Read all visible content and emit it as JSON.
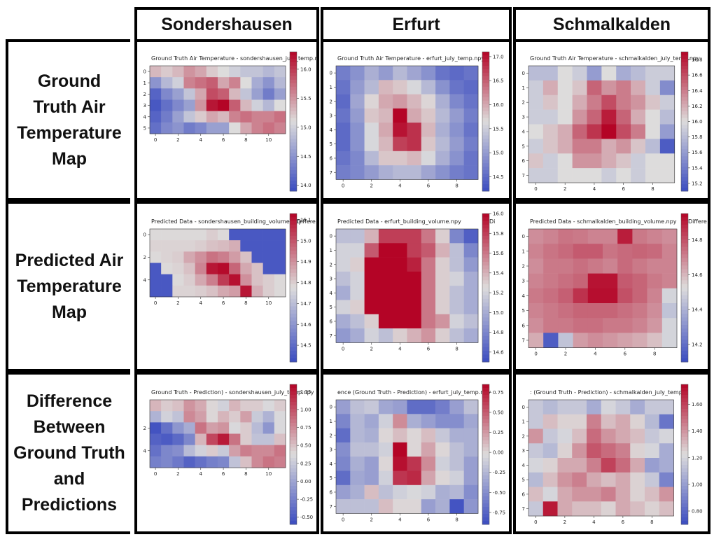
{
  "columns": [
    "Sondershausen",
    "Erfurt",
    "Schmalkalden"
  ],
  "rows": [
    [
      "Ground",
      "Truth Air",
      "Temperature",
      "Map"
    ],
    [
      "Predicted Air",
      "Temperature",
      "Map"
    ],
    [
      "Difference",
      "Between",
      "Ground Truth",
      "and",
      "Predictions"
    ]
  ],
  "colormap": {
    "low": "#3b4cc0",
    "mid": "#dddcdc",
    "high": "#b40426"
  },
  "chart_data": [
    {
      "type": "heatmap",
      "row": 0,
      "col": 0,
      "title": "Ground Truth Air Temperature - sondershausen_july_temp.npy",
      "xticks": [
        0,
        2,
        4,
        6,
        8,
        10
      ],
      "yticks": [
        0,
        1,
        2,
        3,
        4,
        5
      ],
      "colorbar_ticks": [
        14.0,
        14.5,
        15.0,
        15.5,
        16.0
      ],
      "vmin": 13.9,
      "vmax": 16.3,
      "values": [
        [
          15.3,
          15.2,
          15.3,
          15.5,
          15.4,
          15.2,
          15.1,
          15.0,
          14.9,
          14.9,
          14.8,
          14.9
        ],
        [
          14.5,
          14.8,
          15.0,
          15.6,
          15.7,
          15.8,
          15.4,
          15.6,
          15.1,
          14.7,
          14.5,
          14.8
        ],
        [
          14.1,
          14.4,
          14.6,
          14.9,
          15.4,
          15.9,
          15.8,
          15.3,
          14.9,
          14.6,
          14.3,
          14.6
        ],
        [
          14.0,
          14.2,
          14.4,
          14.6,
          15.5,
          16.2,
          16.3,
          15.8,
          15.3,
          15.0,
          14.8,
          15.1
        ],
        [
          14.1,
          14.3,
          14.6,
          14.9,
          15.2,
          15.4,
          15.3,
          15.6,
          15.7,
          15.6,
          15.6,
          15.7
        ],
        [
          14.2,
          14.4,
          14.5,
          14.3,
          14.4,
          14.6,
          14.6,
          15.1,
          15.4,
          15.6,
          15.7,
          15.6
        ]
      ]
    },
    {
      "type": "heatmap",
      "row": 0,
      "col": 1,
      "title": "Ground Truth Air Temperature - erfurt_july_temp.npy",
      "xticks": [
        0,
        2,
        4,
        6,
        8
      ],
      "yticks": [
        0,
        1,
        2,
        3,
        4,
        5,
        6,
        7
      ],
      "colorbar_ticks": [
        14.5,
        15.0,
        15.5,
        16.0,
        16.5,
        17.0
      ],
      "vmin": 14.2,
      "vmax": 17.1,
      "values": [
        [
          14.7,
          14.9,
          15.2,
          15.0,
          15.3,
          15.1,
          14.9,
          14.6,
          14.5,
          14.6
        ],
        [
          14.6,
          15.0,
          15.3,
          15.9,
          15.8,
          15.6,
          15.3,
          14.9,
          14.6,
          14.5
        ],
        [
          14.5,
          15.1,
          15.7,
          16.0,
          16.1,
          15.9,
          15.7,
          15.2,
          14.8,
          14.6
        ],
        [
          14.6,
          15.0,
          15.8,
          15.9,
          17.1,
          16.0,
          15.8,
          15.3,
          15.0,
          14.7
        ],
        [
          14.5,
          14.9,
          15.6,
          16.0,
          17.0,
          16.8,
          15.9,
          15.2,
          14.9,
          14.6
        ],
        [
          14.5,
          14.9,
          15.6,
          15.9,
          16.7,
          16.8,
          15.8,
          15.3,
          15.0,
          14.7
        ],
        [
          14.6,
          14.8,
          15.3,
          15.8,
          15.8,
          15.9,
          15.6,
          15.2,
          14.9,
          14.6
        ],
        [
          14.7,
          14.8,
          15.0,
          15.2,
          15.3,
          15.3,
          15.1,
          14.9,
          14.7,
          14.6
        ]
      ]
    },
    {
      "type": "heatmap",
      "row": 0,
      "col": 2,
      "title": "Ground Truth Air Temperature - schmalkalden_july_temp.npy",
      "xticks": [
        0,
        2,
        4,
        6,
        8
      ],
      "yticks": [
        0,
        1,
        2,
        3,
        4,
        5,
        6,
        7
      ],
      "colorbar_ticks": [
        15.2,
        15.4,
        15.6,
        15.8,
        16.0,
        16.2,
        16.4,
        16.6,
        16.8
      ],
      "vmin": 15.1,
      "vmax": 16.9,
      "values": [
        [
          15.8,
          15.8,
          16.0,
          15.9,
          15.6,
          16.0,
          15.7,
          15.8,
          15.9,
          15.9
        ],
        [
          15.9,
          16.2,
          16.0,
          16.1,
          16.5,
          16.3,
          16.4,
          16.2,
          15.9,
          15.5
        ],
        [
          15.9,
          16.1,
          16.0,
          16.2,
          16.4,
          16.6,
          16.4,
          16.3,
          16.1,
          15.9
        ],
        [
          15.9,
          15.9,
          16.0,
          16.3,
          16.5,
          16.8,
          16.5,
          16.2,
          16.0,
          15.8
        ],
        [
          16.0,
          16.1,
          16.2,
          16.5,
          16.7,
          16.9,
          16.6,
          16.4,
          16.0,
          15.6
        ],
        [
          15.9,
          16.1,
          16.2,
          16.4,
          16.4,
          16.2,
          16.3,
          16.1,
          15.8,
          15.2
        ],
        [
          16.1,
          15.9,
          16.0,
          16.3,
          16.3,
          16.2,
          16.1,
          15.9,
          16.0,
          16.0
        ],
        [
          15.9,
          15.9,
          16.0,
          16.0,
          16.0,
          15.9,
          16.0,
          15.9,
          16.0,
          16.0
        ]
      ]
    },
    {
      "type": "heatmap",
      "row": 1,
      "col": 0,
      "title": "Predicted Data - sondershausen_building_volume.npy",
      "title_right": "Differe",
      "xticks": [
        0,
        2,
        4,
        6,
        8,
        10
      ],
      "yticks": [
        0,
        2,
        4
      ],
      "colorbar_ticks": [
        14.5,
        14.6,
        14.7,
        14.8,
        14.9,
        15.0,
        15.1
      ],
      "vmin": 14.42,
      "vmax": 15.13,
      "values": [
        [
          14.78,
          14.78,
          14.78,
          14.78,
          14.78,
          14.8,
          14.78,
          14.45,
          14.45,
          14.45,
          14.45,
          14.45
        ],
        [
          14.79,
          14.79,
          14.79,
          14.79,
          14.8,
          14.82,
          14.83,
          14.85,
          14.45,
          14.45,
          14.45,
          14.45
        ],
        [
          14.78,
          14.79,
          14.8,
          14.86,
          14.9,
          14.95,
          14.93,
          14.88,
          14.82,
          14.45,
          14.45,
          14.45
        ],
        [
          14.45,
          14.78,
          14.79,
          14.82,
          14.92,
          15.1,
          15.12,
          14.97,
          14.86,
          14.82,
          14.45,
          14.45
        ],
        [
          14.45,
          14.45,
          14.78,
          14.8,
          14.86,
          14.93,
          15.04,
          15.11,
          14.9,
          14.82,
          14.8,
          14.78
        ],
        [
          14.45,
          14.45,
          14.79,
          14.79,
          14.8,
          14.82,
          14.86,
          14.88,
          15.1,
          14.85,
          14.8,
          14.78
        ]
      ]
    },
    {
      "type": "heatmap",
      "row": 1,
      "col": 1,
      "title": "Predicted Data - erfurt_building_volume.npy",
      "title_right": "Di",
      "xticks": [
        0,
        2,
        4,
        6,
        8
      ],
      "yticks": [
        0,
        1,
        2,
        3,
        4,
        5,
        6,
        7
      ],
      "colorbar_ticks": [
        14.6,
        14.8,
        15.0,
        15.2,
        15.4,
        15.6,
        15.8,
        16.0
      ],
      "vmin": 14.5,
      "vmax": 16.0,
      "values": [
        [
          15.1,
          15.1,
          15.4,
          15.8,
          15.8,
          15.8,
          15.6,
          15.3,
          14.8,
          14.6
        ],
        [
          15.2,
          15.2,
          15.7,
          16.0,
          16.0,
          15.8,
          15.7,
          15.4,
          15.1,
          14.8
        ],
        [
          15.2,
          15.3,
          16.0,
          16.0,
          16.0,
          15.9,
          15.6,
          15.3,
          15.1,
          14.9
        ],
        [
          15.1,
          15.2,
          16.0,
          16.0,
          16.0,
          16.0,
          15.6,
          15.3,
          15.2,
          15.0
        ],
        [
          15.0,
          15.2,
          16.0,
          16.0,
          16.0,
          16.0,
          15.6,
          15.3,
          15.1,
          15.0
        ],
        [
          15.2,
          15.3,
          16.0,
          16.0,
          16.0,
          16.0,
          15.6,
          15.3,
          15.1,
          15.0
        ],
        [
          15.0,
          15.1,
          15.3,
          16.0,
          16.0,
          16.0,
          15.6,
          15.5,
          15.2,
          15.1
        ],
        [
          14.9,
          15.0,
          15.2,
          15.1,
          15.3,
          15.4,
          15.5,
          15.3,
          15.1,
          15.0
        ]
      ]
    },
    {
      "type": "heatmap",
      "row": 1,
      "col": 2,
      "title": "Predicted Data - schmalkalden_building_volume.npy",
      "title_right": "Differe",
      "xticks": [
        0,
        2,
        4,
        6,
        8
      ],
      "yticks": [
        0,
        1,
        2,
        3,
        4,
        5,
        6,
        7
      ],
      "colorbar_ticks": [
        14.2,
        14.4,
        14.6,
        14.8
      ],
      "vmin": 14.1,
      "vmax": 14.95,
      "values": [
        [
          14.68,
          14.7,
          14.73,
          14.72,
          14.7,
          14.7,
          14.9,
          14.72,
          14.7,
          14.68
        ],
        [
          14.7,
          14.73,
          14.75,
          14.78,
          14.78,
          14.73,
          14.75,
          14.76,
          14.75,
          14.7
        ],
        [
          14.68,
          14.72,
          14.72,
          14.74,
          14.72,
          14.7,
          14.75,
          14.72,
          14.7,
          14.7
        ],
        [
          14.7,
          14.72,
          14.74,
          14.76,
          14.92,
          14.92,
          14.78,
          14.76,
          14.72,
          14.7
        ],
        [
          14.72,
          14.74,
          14.77,
          14.86,
          14.93,
          14.93,
          14.8,
          14.76,
          14.7,
          14.5
        ],
        [
          14.7,
          14.72,
          14.74,
          14.76,
          14.76,
          14.76,
          14.74,
          14.72,
          14.68,
          14.45
        ],
        [
          14.68,
          14.72,
          14.72,
          14.74,
          14.74,
          14.72,
          14.72,
          14.7,
          14.66,
          14.5
        ],
        [
          14.62,
          14.15,
          14.45,
          14.65,
          14.68,
          14.66,
          14.64,
          14.62,
          14.58,
          14.5
        ]
      ]
    },
    {
      "type": "heatmap",
      "row": 2,
      "col": 0,
      "title": "Ground Truth - Prediction) - sondershausen_july_temp.npy",
      "xticks": [
        0,
        2,
        4,
        6,
        8,
        10
      ],
      "yticks": [
        2,
        4
      ],
      "colorbar_ticks": [
        -0.5,
        -0.25,
        0.0,
        0.25,
        0.5,
        0.75,
        1.0,
        1.25
      ],
      "vmin": -0.6,
      "vmax": 1.35,
      "values": [
        [
          0.55,
          0.45,
          0.5,
          0.7,
          0.6,
          0.4,
          0.3,
          0.55,
          0.45,
          0.45,
          0.35,
          0.45
        ],
        [
          0.1,
          0.3,
          0.2,
          0.75,
          0.65,
          0.4,
          0.55,
          0.45,
          0.65,
          0.25,
          0.1,
          0.35
        ],
        [
          -0.55,
          -0.35,
          -0.1,
          0.05,
          0.85,
          0.65,
          0.7,
          0.35,
          0.45,
          0.15,
          -0.1,
          0.35
        ],
        [
          -0.45,
          -0.5,
          -0.4,
          -0.2,
          0.55,
          1.05,
          1.25,
          0.85,
          0.45,
          0.2,
          0.2,
          0.5
        ],
        [
          -0.35,
          -0.2,
          -0.15,
          0.15,
          0.3,
          0.45,
          0.25,
          0.65,
          0.8,
          0.75,
          0.75,
          0.85
        ],
        [
          -0.25,
          -0.2,
          -0.3,
          -0.45,
          -0.35,
          -0.25,
          -0.2,
          0.2,
          0.5,
          0.75,
          0.85,
          0.8
        ]
      ]
    },
    {
      "type": "heatmap",
      "row": 2,
      "col": 1,
      "title": "ence (Ground Truth - Prediction) - erfurt_july_temp.npy",
      "xticks": [
        0,
        2,
        4,
        6,
        8
      ],
      "yticks": [
        0,
        1,
        2,
        3,
        4,
        5,
        6,
        7
      ],
      "colorbar_ticks": [
        -0.75,
        -0.5,
        -0.25,
        0.0,
        0.25,
        0.5,
        0.75
      ],
      "vmin": -0.9,
      "vmax": 0.85,
      "values": [
        [
          -0.4,
          -0.2,
          -0.15,
          -0.35,
          -0.4,
          -0.7,
          -0.7,
          -0.6,
          -0.4,
          -0.2
        ],
        [
          -0.55,
          -0.25,
          -0.35,
          -0.1,
          0.3,
          -0.3,
          -0.4,
          -0.5,
          -0.5,
          -0.35
        ],
        [
          -0.7,
          -0.25,
          -0.3,
          0.0,
          0.1,
          0.0,
          0.1,
          -0.15,
          -0.3,
          -0.3
        ],
        [
          -0.5,
          -0.2,
          -0.2,
          -0.1,
          0.85,
          0.0,
          0.2,
          0.0,
          -0.2,
          -0.3
        ],
        [
          -0.55,
          -0.3,
          -0.4,
          0.0,
          0.8,
          0.65,
          0.3,
          -0.1,
          -0.2,
          -0.4
        ],
        [
          -0.7,
          -0.35,
          -0.4,
          -0.1,
          0.65,
          0.7,
          0.2,
          0.0,
          -0.1,
          -0.4
        ],
        [
          -0.4,
          -0.3,
          0.1,
          -0.2,
          -0.1,
          -0.05,
          -0.1,
          -0.3,
          -0.25,
          -0.5
        ],
        [
          -0.2,
          -0.2,
          -0.2,
          0.1,
          0.0,
          0.0,
          -0.4,
          -0.3,
          -0.85,
          -0.45
        ]
      ]
    },
    {
      "type": "heatmap",
      "row": 2,
      "col": 2,
      "title": ": (Ground Truth - Prediction) - schmalkalden_july_temp.",
      "xticks": [
        0,
        2,
        4,
        6,
        8
      ],
      "yticks": [
        0,
        1,
        2,
        3,
        4,
        5,
        6,
        7
      ],
      "colorbar_ticks": [
        0.8,
        1.0,
        1.2,
        1.4,
        1.6
      ],
      "vmin": 0.7,
      "vmax": 1.75,
      "values": [
        [
          1.15,
          1.1,
          1.15,
          1.15,
          1.05,
          1.2,
          1.15,
          1.05,
          1.15,
          1.15
        ],
        [
          1.15,
          1.3,
          1.25,
          1.25,
          1.45,
          1.3,
          1.35,
          1.25,
          1.1,
          0.85
        ],
        [
          1.4,
          1.15,
          1.2,
          1.3,
          1.5,
          1.4,
          1.35,
          1.3,
          1.15,
          1.2
        ],
        [
          1.15,
          1.1,
          1.25,
          1.4,
          1.55,
          1.5,
          1.45,
          1.25,
          1.2,
          1.05
        ],
        [
          1.2,
          1.25,
          1.35,
          1.35,
          1.45,
          1.6,
          1.5,
          1.35,
          1.0,
          1.05
        ],
        [
          1.1,
          1.3,
          1.4,
          1.45,
          1.35,
          1.3,
          1.35,
          1.25,
          1.15,
          0.9
        ],
        [
          1.3,
          1.2,
          1.35,
          1.4,
          1.4,
          1.45,
          1.35,
          1.25,
          1.3,
          1.4
        ],
        [
          1.15,
          1.7,
          1.35,
          1.3,
          1.3,
          1.25,
          1.35,
          1.3,
          1.25,
          1.3
        ]
      ]
    }
  ]
}
